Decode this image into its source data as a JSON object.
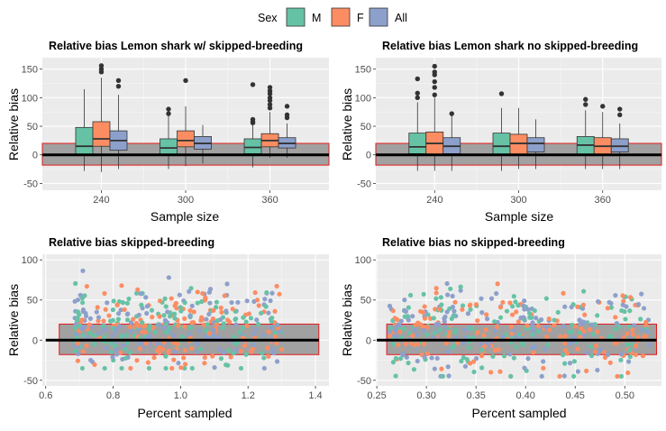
{
  "legend": {
    "title": "Sex",
    "items": [
      {
        "label": "M",
        "color": "#66C2A5"
      },
      {
        "label": "F",
        "color": "#FC8D62"
      },
      {
        "label": "All",
        "color": "#8DA0CB"
      }
    ]
  },
  "chart_data": [
    {
      "type": "box",
      "title": "Relative bias Lemon shark w/ skipped-breeding",
      "xlabel": "Sample size",
      "ylabel": "Relative bias",
      "categories": [
        "240",
        "300",
        "360"
      ],
      "yticks": [
        -50,
        0,
        50,
        100,
        150
      ],
      "ylim": [
        -62,
        170
      ],
      "reference_band": [
        -18,
        20
      ],
      "series": [
        {
          "name": "M",
          "boxes": [
            {
              "q1": 0,
              "median": 15,
              "q3": 48,
              "whisker_low": -28,
              "whisker_high": 115,
              "outliers": []
            },
            {
              "q1": 0,
              "median": 12,
              "q3": 28,
              "whisker_low": -25,
              "whisker_high": 68,
              "outliers": [
                72,
                80
              ]
            },
            {
              "q1": 2,
              "median": 13,
              "q3": 28,
              "whisker_low": -22,
              "whisker_high": 52,
              "outliers": [
                56,
                58,
                62,
                123
              ]
            }
          ]
        },
        {
          "name": "F",
          "boxes": [
            {
              "q1": 15,
              "median": 28,
              "q3": 58,
              "whisker_low": -30,
              "whisker_high": 135,
              "outliers": [
                145,
                150,
                156
              ]
            },
            {
              "q1": 14,
              "median": 25,
              "q3": 42,
              "whisker_low": -20,
              "whisker_high": 85,
              "outliers": [
                130
              ]
            },
            {
              "q1": 14,
              "median": 25,
              "q3": 37,
              "whisker_low": -5,
              "whisker_high": 75,
              "outliers": [
                82,
                88,
                95,
                100,
                107,
                112,
                118
              ]
            }
          ]
        },
        {
          "name": "All",
          "boxes": [
            {
              "q1": 8,
              "median": 25,
              "q3": 42,
              "whisker_low": -25,
              "whisker_high": 105,
              "outliers": [
                120,
                130
              ]
            },
            {
              "q1": 10,
              "median": 20,
              "q3": 32,
              "whisker_low": -15,
              "whisker_high": 52,
              "outliers": []
            },
            {
              "q1": 12,
              "median": 20,
              "q3": 30,
              "whisker_low": -5,
              "whisker_high": 55,
              "outliers": [
                65,
                70,
                85
              ]
            }
          ]
        }
      ]
    },
    {
      "type": "box",
      "title": "Relative bias Lemon shark no skipped-breeding",
      "xlabel": "Sample size",
      "ylabel": "Relative bias",
      "categories": [
        "240",
        "300",
        "360"
      ],
      "yticks": [
        -50,
        0,
        50,
        100,
        150
      ],
      "ylim": [
        -62,
        170
      ],
      "reference_band": [
        -18,
        20
      ],
      "series": [
        {
          "name": "M",
          "boxes": [
            {
              "q1": 2,
              "median": 14,
              "q3": 38,
              "whisker_low": -28,
              "whisker_high": 92,
              "outliers": [
                100,
                108,
                133
              ]
            },
            {
              "q1": 0,
              "median": 15,
              "q3": 38,
              "whisker_low": -28,
              "whisker_high": 82,
              "outliers": [
                107
              ]
            },
            {
              "q1": 0,
              "median": 17,
              "q3": 32,
              "whisker_low": -25,
              "whisker_high": 78,
              "outliers": [
                88,
                97
              ]
            }
          ]
        },
        {
          "name": "F",
          "boxes": [
            {
              "q1": 0,
              "median": 20,
              "q3": 40,
              "whisker_low": -28,
              "whisker_high": 100,
              "outliers": [
                105,
                118,
                128,
                140,
                145,
                155
              ]
            },
            {
              "q1": 0,
              "median": 20,
              "q3": 36,
              "whisker_low": -25,
              "whisker_high": 82,
              "outliers": []
            },
            {
              "q1": 0,
              "median": 15,
              "q3": 30,
              "whisker_low": -25,
              "whisker_high": 75,
              "outliers": [
                85
              ]
            }
          ]
        },
        {
          "name": "All",
          "boxes": [
            {
              "q1": 2,
              "median": 15,
              "q3": 30,
              "whisker_low": -28,
              "whisker_high": 70,
              "outliers": [
                72
              ]
            },
            {
              "q1": 5,
              "median": 20,
              "q3": 30,
              "whisker_low": -25,
              "whisker_high": 62,
              "outliers": []
            },
            {
              "q1": 5,
              "median": 15,
              "q3": 28,
              "whisker_low": -25,
              "whisker_high": 55,
              "outliers": [
                70,
                80
              ]
            }
          ]
        }
      ]
    },
    {
      "type": "scatter",
      "title": "Relative bias skipped-breeding",
      "xlabel": "Percent sampled",
      "ylabel": "Relative bias",
      "xticks": [
        0.6,
        0.8,
        1.0,
        1.2,
        1.4
      ],
      "xtick_labels": [
        "0.6",
        "0.8",
        "1.0",
        "1.2",
        "1.4"
      ],
      "yticks": [
        -50,
        0,
        50,
        100
      ],
      "xlim": [
        0.59,
        1.44
      ],
      "ylim": [
        -57,
        107
      ],
      "reference_band": {
        "x": [
          0.64,
          1.41
        ],
        "y": [
          -18,
          20
        ]
      },
      "zero_line": {
        "x": [
          0.6,
          1.41
        ]
      },
      "x_range": [
        0.68,
        1.3
      ],
      "y_center": 15,
      "y_range": [
        -35,
        98
      ],
      "points_per_series": 150,
      "seed": 11
    },
    {
      "type": "scatter",
      "title": "Relative bias no skipped-breeding",
      "xlabel": "Percent sampled",
      "ylabel": "Relative bias",
      "xticks": [
        0.25,
        0.3,
        0.35,
        0.4,
        0.45,
        0.5
      ],
      "xtick_labels": [
        "0.25",
        "0.30",
        "0.35",
        "0.40",
        "0.45",
        "0.50"
      ],
      "yticks": [
        -50,
        0,
        50,
        100
      ],
      "xlim": [
        0.249,
        0.537
      ],
      "ylim": [
        -57,
        107
      ],
      "reference_band": {
        "x": [
          0.26,
          0.532
        ],
        "y": [
          -18,
          20
        ]
      },
      "zero_line": {
        "x": [
          0.25,
          0.532
        ]
      },
      "x_range": [
        0.262,
        0.525
      ],
      "y_center": 12,
      "y_range": [
        -45,
        98
      ],
      "points_per_series": 150,
      "seed": 29
    }
  ]
}
